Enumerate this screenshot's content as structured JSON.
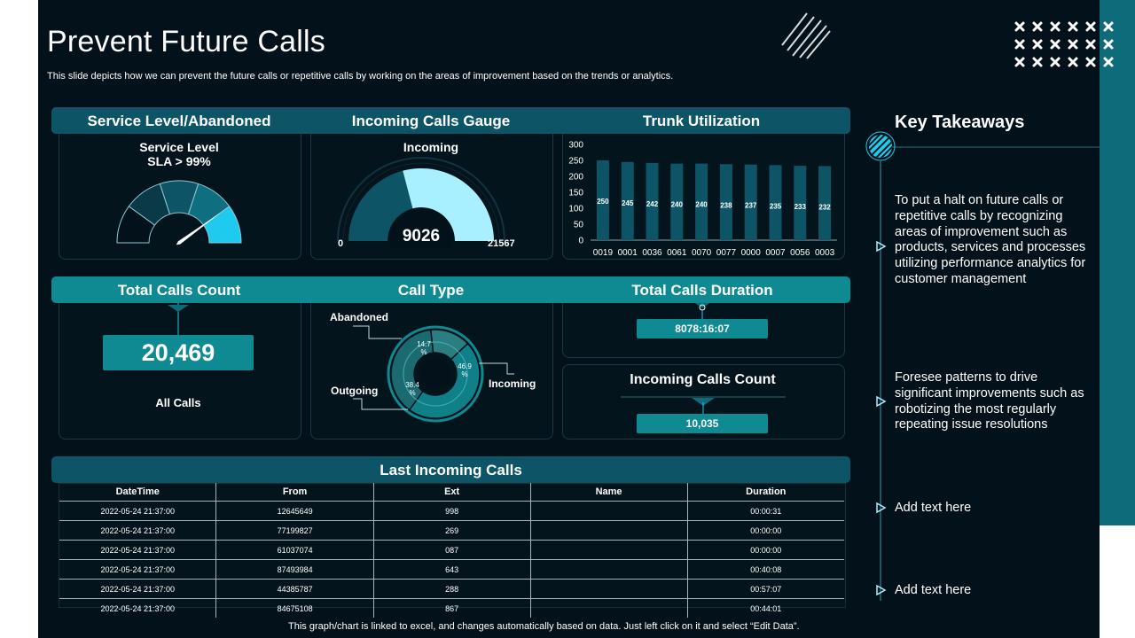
{
  "title": "Prevent Future Calls",
  "subtitle": "This slide depicts how we can prevent the future calls or repetitive calls by working on the areas of improvement based on the trends or analytics.",
  "headers": {
    "service_level": "Service Level/Abandoned",
    "incoming_gauge": "Incoming Calls Gauge",
    "trunk": "Trunk Utilization",
    "total_calls_count": "Total Calls Count",
    "call_type": "Call Type",
    "total_calls_duration": "Total Calls Duration",
    "incoming_calls_count": "Incoming Calls Count",
    "last_incoming": "Last Incoming Calls"
  },
  "service_level": {
    "line1": "Service Level",
    "line2": "SLA > 99%",
    "needle_fraction": 0.8
  },
  "incoming_gauge": {
    "label": "Incoming",
    "value": "9026",
    "min": "0",
    "max": "21567",
    "current": 9026,
    "maximum": 21567
  },
  "total_calls": {
    "value": "20,469",
    "label": "All Calls"
  },
  "total_duration": {
    "value": "8078:16:07"
  },
  "incoming_count": {
    "value": "10,035"
  },
  "call_type": {
    "labels": {
      "abandoned": "Abandoned",
      "outgoing": "Outgoing",
      "incoming": "Incoming"
    },
    "slice_labels": {
      "abandoned": "14.7\n%",
      "incoming": "46.9\n%",
      "outgoing": "38.4\n%"
    },
    "shares": {
      "abandoned": 14.7,
      "incoming": 46.9,
      "outgoing": 38.4
    }
  },
  "chart_data": {
    "type": "bar",
    "title": "Trunk Utilization",
    "categories": [
      "0019",
      "0001",
      "0036",
      "0061",
      "0070",
      "0077",
      "0000",
      "0007",
      "0056",
      "0003"
    ],
    "values": [
      250,
      245,
      242,
      240,
      240,
      238,
      237,
      235,
      233,
      232
    ],
    "value_labels": [
      "250",
      "245",
      "242",
      "240",
      "240",
      "238",
      "237",
      "235",
      "233",
      "232"
    ],
    "yticks": [
      "300",
      "250",
      "200",
      "150",
      "100",
      "50",
      "0"
    ],
    "ylim": [
      0,
      300
    ],
    "xlabel": "",
    "ylabel": "",
    "color": "#0d5566"
  },
  "table": {
    "columns": [
      "DateTime",
      "From",
      "Ext",
      "Name",
      "Duration"
    ],
    "rows": [
      [
        "2022-05-24 21:37:00",
        "12645649",
        "998",
        "",
        "00:00:31"
      ],
      [
        "2022-05-24 21:37:00",
        "77199827",
        "269",
        "",
        "00:00:00"
      ],
      [
        "2022-05-24 21:37:00",
        "61037074",
        "087",
        "",
        "00:00:00"
      ],
      [
        "2022-05-24 21:37:00",
        "87493984",
        "643",
        "",
        "00:40:08"
      ],
      [
        "2022-05-24 21:37:00",
        "44385787",
        "288",
        "",
        "00:57:07"
      ],
      [
        "2022-05-24 21:37:00",
        "84675108",
        "867",
        "",
        "00:44:01"
      ]
    ]
  },
  "key_takeaways": {
    "title": "Key Takeaways",
    "items": [
      "To put a halt on future calls or repetitive calls by recognizing areas of improvement such as products, services and processes utilizing performance analytics for customer management",
      "Foresee patterns to drive significant improvements such as robotizing the most regularly repeating issue resolutions",
      "Add text here",
      "Add text here"
    ]
  },
  "footer": "This graph/chart is linked to excel,  and changes automatically based on data. Just left click on it and select “Edit Data”.",
  "icons": [
    "hatch-icon",
    "x-pattern-icon",
    "striped-circle-icon",
    "arrow-bullet-icon"
  ],
  "colors": {
    "background": "#03121a",
    "header": "#0d5566",
    "accent_teal": "#0f8a92",
    "highlight": "#1ecbef",
    "light": "#a8efff"
  }
}
